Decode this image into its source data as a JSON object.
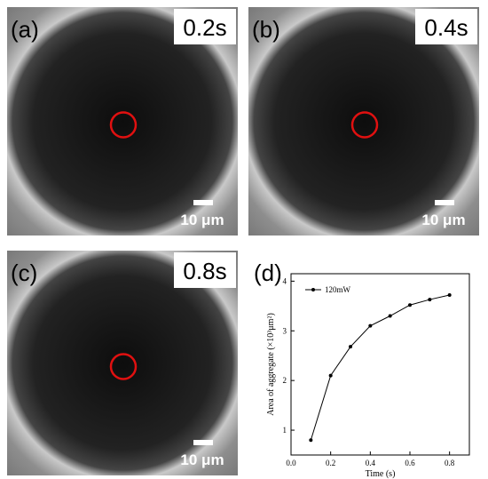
{
  "panels": [
    {
      "label": "(a)",
      "time": "0.2s",
      "scale": "10 μm"
    },
    {
      "label": "(b)",
      "time": "0.4s",
      "scale": "10 μm"
    },
    {
      "label": "(c)",
      "time": "0.8s",
      "scale": "10 μm"
    }
  ],
  "chart_data": {
    "type": "line",
    "panel_label": "(d)",
    "x_label": "Time (s)",
    "y_label": "Area of aggregate (×10³μm²)",
    "x": [
      0.1,
      0.2,
      0.3,
      0.4,
      0.5,
      0.6,
      0.7,
      0.8
    ],
    "series": [
      {
        "name": "120mW",
        "color": "#000000",
        "values": [
          0.8,
          2.1,
          2.68,
          3.1,
          3.3,
          3.52,
          3.63,
          3.72
        ]
      }
    ],
    "xlim": [
      0,
      0.9
    ],
    "ylim": [
      0.5,
      4.15
    ],
    "xticks": [
      {
        "value": 0,
        "label": "0.0"
      },
      {
        "value": 0.2,
        "label": "0.2"
      },
      {
        "value": 0.4,
        "label": "0.4"
      },
      {
        "value": 0.6,
        "label": "0.6"
      },
      {
        "value": 0.8,
        "label": "0.8"
      }
    ],
    "yticks": [
      1,
      2,
      3,
      4
    ],
    "legend": "upper-left"
  }
}
